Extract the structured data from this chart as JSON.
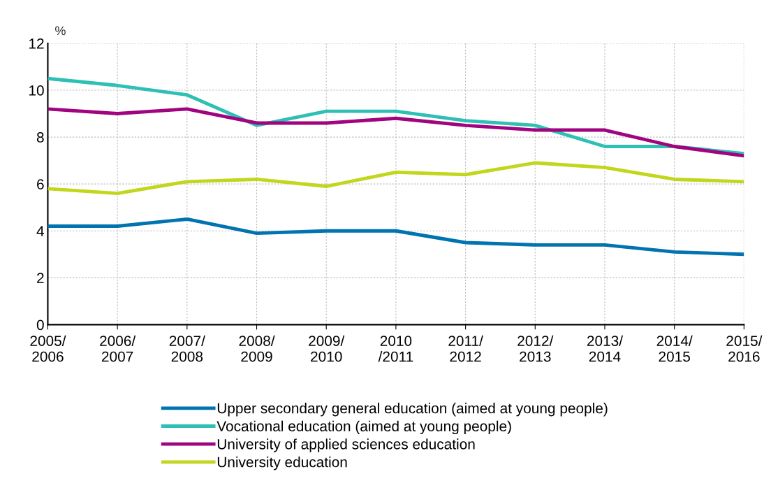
{
  "chart_data": {
    "type": "line",
    "ylabel": "%",
    "categories": [
      "2005/\n2006",
      "2006/\n2007",
      "2007/\n2008",
      "2008/\n2009",
      "2009/\n2010",
      "2010\n/2011",
      "2011/\n2012",
      "2012/\n2013",
      "2013/\n2014",
      "2014/\n2015",
      "2015/\n2016"
    ],
    "series": [
      {
        "name": "Upper secondary general education (aimed at young people)",
        "color": "#0073b0",
        "values": [
          4.2,
          4.2,
          4.5,
          3.9,
          4.0,
          4.0,
          3.5,
          3.4,
          3.4,
          3.1,
          3.0
        ]
      },
      {
        "name": "Vocational education (aimed at young people)",
        "color": "#2ebfb5",
        "values": [
          10.5,
          10.2,
          9.8,
          8.5,
          9.1,
          9.1,
          8.7,
          8.5,
          7.6,
          7.6,
          7.3
        ]
      },
      {
        "name": "University of applied sciences education",
        "color": "#a0047f",
        "values": [
          9.2,
          9.0,
          9.2,
          8.6,
          8.6,
          8.8,
          8.5,
          8.3,
          8.3,
          7.6,
          7.2
        ]
      },
      {
        "name": "University education",
        "color": "#c2d61e",
        "values": [
          5.8,
          5.6,
          6.1,
          6.2,
          5.9,
          6.5,
          6.4,
          6.9,
          6.7,
          6.2,
          6.1
        ]
      }
    ],
    "ylim": [
      0,
      12
    ],
    "yticks": [
      0,
      2,
      4,
      6,
      8,
      10,
      12
    ],
    "grid": true,
    "legend": "bottom",
    "marker": "none",
    "line_style": "solid"
  }
}
